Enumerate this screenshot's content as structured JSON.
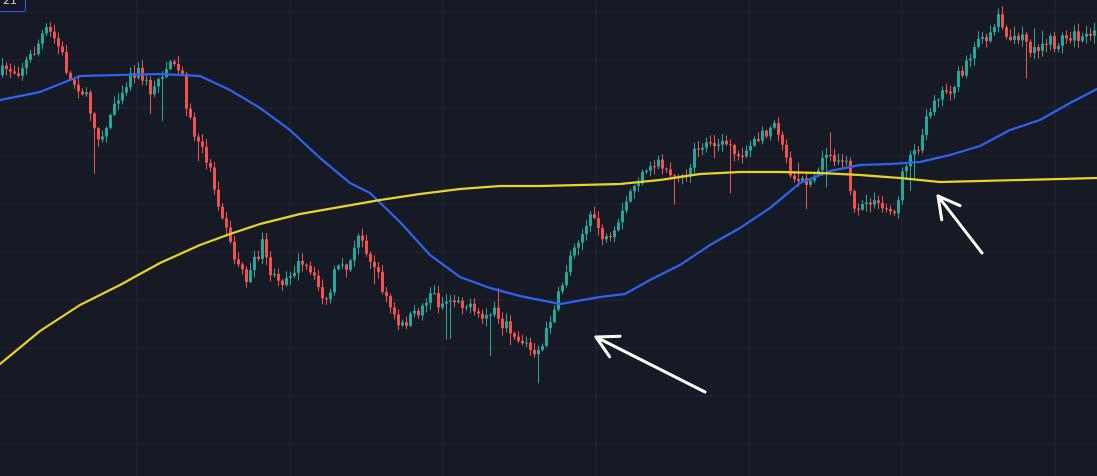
{
  "badge": {
    "label": "21"
  },
  "colors": {
    "background": "#161a25",
    "grid": "#232736",
    "bull": "#26a69a",
    "bear": "#ef5350",
    "ma_fast": "#2f63ee",
    "ma_slow": "#e8d32c",
    "annotation": "#ffffff"
  },
  "chart_data": {
    "type": "candlestick",
    "title": "",
    "xlabel": "",
    "ylabel": "",
    "grid": true,
    "ylim": [
      0,
      476
    ],
    "anchors": [
      [
        0,
        75
      ],
      [
        10,
        68
      ],
      [
        20,
        72
      ],
      [
        30,
        60
      ],
      [
        38,
        50
      ],
      [
        45,
        35
      ],
      [
        50,
        30
      ],
      [
        58,
        40
      ],
      [
        65,
        55
      ],
      [
        72,
        80
      ],
      [
        80,
        85
      ],
      [
        88,
        95
      ],
      [
        95,
        118
      ],
      [
        103,
        140
      ],
      [
        110,
        125
      ],
      [
        118,
        98
      ],
      [
        125,
        90
      ],
      [
        133,
        75
      ],
      [
        140,
        70
      ],
      [
        148,
        82
      ],
      [
        155,
        95
      ],
      [
        163,
        75
      ],
      [
        170,
        65
      ],
      [
        178,
        68
      ],
      [
        185,
        75
      ],
      [
        190,
        110
      ],
      [
        197,
        135
      ],
      [
        205,
        150
      ],
      [
        212,
        165
      ],
      [
        220,
        200
      ],
      [
        228,
        220
      ],
      [
        235,
        255
      ],
      [
        242,
        265
      ],
      [
        250,
        280
      ],
      [
        258,
        260
      ],
      [
        265,
        245
      ],
      [
        272,
        270
      ],
      [
        280,
        285
      ],
      [
        290,
        275
      ],
      [
        300,
        265
      ],
      [
        310,
        270
      ],
      [
        320,
        285
      ],
      [
        330,
        305
      ],
      [
        338,
        270
      ],
      [
        346,
        270
      ],
      [
        354,
        260
      ],
      [
        362,
        235
      ],
      [
        370,
        250
      ],
      [
        378,
        270
      ],
      [
        386,
        290
      ],
      [
        394,
        310
      ],
      [
        402,
        330
      ],
      [
        410,
        320
      ],
      [
        418,
        315
      ],
      [
        426,
        305
      ],
      [
        434,
        290
      ],
      [
        442,
        305
      ],
      [
        450,
        300
      ],
      [
        458,
        298
      ],
      [
        466,
        303
      ],
      [
        474,
        310
      ],
      [
        482,
        320
      ],
      [
        490,
        315
      ],
      [
        498,
        310
      ],
      [
        506,
        325
      ],
      [
        514,
        330
      ],
      [
        522,
        340
      ],
      [
        530,
        345
      ],
      [
        538,
        360
      ],
      [
        546,
        345
      ],
      [
        552,
        320
      ],
      [
        560,
        300
      ],
      [
        566,
        280
      ],
      [
        572,
        260
      ],
      [
        578,
        240
      ],
      [
        584,
        235
      ],
      [
        590,
        225
      ],
      [
        596,
        215
      ],
      [
        604,
        235
      ],
      [
        612,
        245
      ],
      [
        620,
        230
      ],
      [
        628,
        205
      ],
      [
        636,
        185
      ],
      [
        644,
        178
      ],
      [
        652,
        172
      ],
      [
        660,
        160
      ],
      [
        668,
        168
      ],
      [
        676,
        175
      ],
      [
        684,
        182
      ],
      [
        692,
        165
      ],
      [
        700,
        148
      ],
      [
        710,
        142
      ],
      [
        720,
        145
      ],
      [
        730,
        148
      ],
      [
        740,
        155
      ],
      [
        750,
        150
      ],
      [
        760,
        140
      ],
      [
        770,
        130
      ],
      [
        778,
        120
      ],
      [
        786,
        145
      ],
      [
        792,
        170
      ],
      [
        800,
        178
      ],
      [
        808,
        180
      ],
      [
        816,
        172
      ],
      [
        824,
        160
      ],
      [
        832,
        155
      ],
      [
        840,
        158
      ],
      [
        848,
        160
      ],
      [
        856,
        205
      ],
      [
        862,
        215
      ],
      [
        870,
        200
      ],
      [
        878,
        205
      ],
      [
        886,
        208
      ],
      [
        894,
        212
      ],
      [
        900,
        205
      ],
      [
        906,
        170
      ],
      [
        912,
        155
      ],
      [
        918,
        150
      ],
      [
        924,
        140
      ],
      [
        930,
        115
      ],
      [
        938,
        95
      ],
      [
        946,
        92
      ],
      [
        954,
        88
      ],
      [
        962,
        75
      ],
      [
        970,
        65
      ],
      [
        978,
        45
      ],
      [
        986,
        40
      ],
      [
        994,
        30
      ],
      [
        1002,
        15
      ],
      [
        1010,
        35
      ],
      [
        1018,
        42
      ],
      [
        1026,
        40
      ],
      [
        1034,
        48
      ],
      [
        1042,
        55
      ],
      [
        1050,
        40
      ],
      [
        1058,
        45
      ],
      [
        1066,
        38
      ],
      [
        1074,
        35
      ],
      [
        1082,
        38
      ],
      [
        1090,
        40
      ],
      [
        1097,
        35
      ]
    ],
    "series": [
      {
        "kind": "line",
        "color_key": "ma_fast",
        "points": [
          [
            0,
            100
          ],
          [
            40,
            92
          ],
          [
            80,
            76
          ],
          [
            120,
            75
          ],
          [
            160,
            74
          ],
          [
            200,
            76
          ],
          [
            230,
            90
          ],
          [
            260,
            108
          ],
          [
            290,
            130
          ],
          [
            320,
            158
          ],
          [
            350,
            183
          ],
          [
            370,
            193
          ],
          [
            400,
            222
          ],
          [
            430,
            255
          ],
          [
            460,
            277
          ],
          [
            490,
            288
          ],
          [
            520,
            296
          ],
          [
            560,
            304
          ],
          [
            600,
            297
          ],
          [
            625,
            294
          ],
          [
            650,
            280
          ],
          [
            680,
            265
          ],
          [
            710,
            245
          ],
          [
            740,
            228
          ],
          [
            770,
            208
          ],
          [
            800,
            183
          ],
          [
            830,
            171
          ],
          [
            860,
            165
          ],
          [
            890,
            164
          ],
          [
            920,
            162
          ],
          [
            950,
            155
          ],
          [
            980,
            146
          ],
          [
            1010,
            130
          ],
          [
            1040,
            120
          ],
          [
            1070,
            103
          ],
          [
            1097,
            89
          ]
        ]
      },
      {
        "kind": "line",
        "color_key": "ma_slow",
        "points": [
          [
            0,
            364
          ],
          [
            40,
            331
          ],
          [
            80,
            305
          ],
          [
            120,
            285
          ],
          [
            160,
            263
          ],
          [
            200,
            245
          ],
          [
            230,
            234
          ],
          [
            260,
            224
          ],
          [
            300,
            214
          ],
          [
            340,
            207
          ],
          [
            380,
            200
          ],
          [
            420,
            194
          ],
          [
            460,
            189
          ],
          [
            500,
            186
          ],
          [
            540,
            186
          ],
          [
            580,
            185
          ],
          [
            620,
            184
          ],
          [
            660,
            180
          ],
          [
            700,
            174
          ],
          [
            740,
            172
          ],
          [
            780,
            172
          ],
          [
            820,
            173
          ],
          [
            860,
            175
          ],
          [
            900,
            178
          ],
          [
            940,
            182
          ],
          [
            980,
            181
          ],
          [
            1020,
            180
          ],
          [
            1060,
            179
          ],
          [
            1097,
            178
          ]
        ]
      }
    ],
    "annotations": [
      {
        "type": "arrow",
        "from": [
          705,
          392
        ],
        "to": [
          596,
          337
        ]
      },
      {
        "type": "arrow",
        "from": [
          982,
          253
        ],
        "to": [
          938,
          196
        ]
      }
    ]
  }
}
